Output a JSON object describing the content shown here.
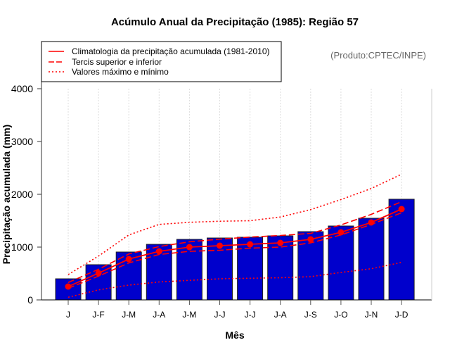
{
  "chart_data": {
    "type": "bar",
    "title": "Acúmulo Anual da Precipitação (1985): Região 57",
    "subtitle": "(Produto:CPTEC/INPE)",
    "xlabel": "Mês",
    "ylabel": "Precipitação acumulada (mm)",
    "ylim": [
      0,
      4000
    ],
    "yticks": [
      0,
      1000,
      2000,
      3000,
      4000
    ],
    "grid": "vertical-dotted",
    "legend_position": "top-left",
    "categories": [
      "J",
      "J-F",
      "J-M",
      "J-A",
      "J-M",
      "J-J",
      "J-J",
      "J-A",
      "J-S",
      "J-O",
      "J-N",
      "J-D"
    ],
    "bar_color": "#0000CC",
    "line_color": "#FF0000",
    "values": [
      400,
      667,
      907,
      1053,
      1147,
      1173,
      1187,
      1213,
      1293,
      1400,
      1547,
      1907
    ],
    "series": [
      {
        "name": "Climatologia da precipitação acumulada (1981-2010)",
        "style": "solid",
        "markers": true,
        "values": [
          253,
          507,
          773,
          920,
          1000,
          1027,
          1053,
          1080,
          1147,
          1280,
          1467,
          1720
        ]
      },
      {
        "name": "Tercis superior e inferior",
        "style": "dashed",
        "part": "upper",
        "values": [
          330,
          580,
          870,
          1010,
          1100,
          1150,
          1190,
          1220,
          1260,
          1420,
          1620,
          1860
        ]
      },
      {
        "name": "Tercis superior e inferior",
        "style": "dashed",
        "part": "lower",
        "values": [
          220,
          450,
          700,
          860,
          920,
          940,
          980,
          1000,
          1080,
          1230,
          1430,
          1650
        ]
      },
      {
        "name": "Valores máximo e mínimo",
        "style": "dotted",
        "part": "max",
        "values": [
          480,
          830,
          1230,
          1430,
          1470,
          1490,
          1500,
          1570,
          1710,
          1900,
          2110,
          2380
        ]
      },
      {
        "name": "Valores máximo e mínimo",
        "style": "dotted",
        "part": "min",
        "values": [
          50,
          190,
          280,
          340,
          370,
          400,
          410,
          420,
          440,
          520,
          590,
          710
        ]
      }
    ],
    "legend": [
      "Climatologia da precipitação acumulada (1981-2010)",
      "Tercis superior e inferior",
      "Valores máximo e mínimo"
    ]
  }
}
